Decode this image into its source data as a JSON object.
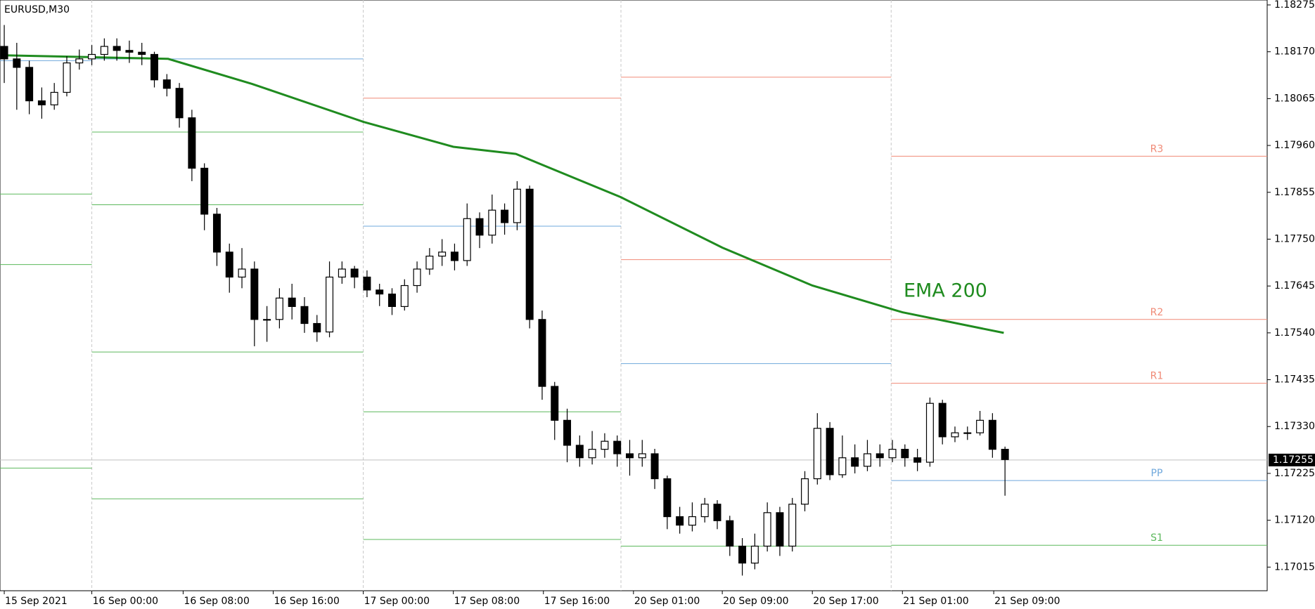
{
  "chart_data": {
    "type": "candlestick",
    "title": "EURUSD,M30",
    "ylim": [
      1.16962,
      1.18286
    ],
    "xlim": [
      -0.34,
      100.96
    ],
    "yticks": [
      1.18275,
      {
        "value": 1.1817,
        "label": "1.18170"
      },
      1.18065,
      {
        "value": 1.1796,
        "label": "1.17960"
      },
      1.17855,
      {
        "value": 1.1775,
        "label": "1.17750"
      },
      1.17645,
      {
        "value": 1.1754,
        "label": "1.17540"
      },
      1.17435,
      {
        "value": 1.1733,
        "label": "1.17330"
      },
      1.17225,
      {
        "value": 1.1712,
        "label": "1.17120"
      },
      1.17015
    ],
    "xticks": [
      {
        "value": 0,
        "label": "15 Sep 2021"
      },
      {
        "value": 7,
        "label": "16 Sep 00:00"
      },
      {
        "value": 14.3,
        "label": "16 Sep 08:00"
      },
      {
        "value": 21.5,
        "label": "16 Sep 16:00"
      },
      {
        "value": 28.7,
        "label": "17 Sep 00:00"
      },
      {
        "value": 35.9,
        "label": "17 Sep 08:00"
      },
      {
        "value": 43.1,
        "label": "17 Sep 16:00"
      },
      {
        "value": 50.3,
        "label": "20 Sep 01:00"
      },
      {
        "value": 57.4,
        "label": "20 Sep 09:00"
      },
      {
        "value": 64.6,
        "label": "20 Sep 17:00"
      },
      {
        "value": 71.8,
        "label": "21 Sep 01:00"
      },
      {
        "value": 79.1,
        "label": "21 Sep 09:00"
      }
    ],
    "day_separators": [
      7,
      28.7,
      49.3,
      70.9
    ],
    "up_color": "#ffffff",
    "down_color": "#000000",
    "open": [
      1.18182,
      1.18154,
      1.18135,
      1.1806,
      1.18051,
      1.18079,
      1.18145,
      1.18154,
      1.18164,
      1.18182,
      1.18173,
      1.18169,
      1.18164,
      1.18107,
      1.18088,
      1.18022,
      1.17909,
      1.17806,
      1.17721,
      1.17665,
      1.17683,
      1.1757,
      1.1757,
      1.17618,
      1.17599,
      1.17561,
      1.17542,
      1.17665,
      1.17683,
      1.17665,
      1.17636,
      1.17627,
      1.17599,
      1.17646,
      1.17683,
      1.17712,
      1.17721,
      1.17702,
      1.17796,
      1.17759,
      1.17815,
      1.17787,
      1.17862,
      1.1757,
      1.1742,
      1.17344,
      1.17288,
      1.1726,
      1.17279,
      1.17297,
      1.17269,
      1.1726,
      1.17269,
      1.17213,
      1.17128,
      1.17109,
      1.17128,
      1.17156,
      1.17119,
      1.17062,
      1.17024,
      1.17062,
      1.17137,
      1.17062,
      1.17156,
      1.17213,
      1.17326,
      1.17222,
      1.1726,
      1.17241,
      1.17269,
      1.1726,
      1.17279,
      1.1726,
      1.1725,
      1.17382,
      1.17307,
      1.17316,
      1.17316,
      1.17344,
      1.17279
    ],
    "high": [
      1.1823,
      1.1819,
      1.1815,
      1.1809,
      1.181,
      1.1816,
      1.18175,
      1.18185,
      1.182,
      1.182,
      1.18195,
      1.1819,
      1.1817,
      1.1812,
      1.181,
      1.1804,
      1.1792,
      1.1782,
      1.1774,
      1.1773,
      1.177,
      1.176,
      1.1764,
      1.1765,
      1.1762,
      1.1758,
      1.177,
      1.177,
      1.1769,
      1.1768,
      1.1765,
      1.1764,
      1.1766,
      1.177,
      1.1773,
      1.1775,
      1.1774,
      1.1783,
      1.1781,
      1.1785,
      1.1783,
      1.1788,
      1.1787,
      1.1759,
      1.1743,
      1.1737,
      1.1731,
      1.1732,
      1.17315,
      1.1731,
      1.173,
      1.173,
      1.1728,
      1.1722,
      1.1715,
      1.1716,
      1.1717,
      1.17165,
      1.1713,
      1.1708,
      1.1709,
      1.1716,
      1.1715,
      1.1717,
      1.1723,
      1.1736,
      1.1734,
      1.1731,
      1.1729,
      1.173,
      1.1729,
      1.173,
      1.1729,
      1.1728,
      1.17395,
      1.1739,
      1.1733,
      1.1733,
      1.17365,
      1.1736,
      1.17285
    ],
    "low": [
      1.181,
      1.1804,
      1.1803,
      1.1802,
      1.1804,
      1.1807,
      1.1813,
      1.1814,
      1.1815,
      1.1815,
      1.18145,
      1.1814,
      1.1809,
      1.1807,
      1.18,
      1.1788,
      1.1777,
      1.1769,
      1.1763,
      1.1764,
      1.1751,
      1.1752,
      1.1755,
      1.1757,
      1.1754,
      1.1752,
      1.1753,
      1.1765,
      1.1764,
      1.1762,
      1.176,
      1.1758,
      1.1759,
      1.1763,
      1.1767,
      1.1769,
      1.1768,
      1.1769,
      1.1773,
      1.1774,
      1.1776,
      1.1777,
      1.1755,
      1.1739,
      1.173,
      1.1725,
      1.1724,
      1.17245,
      1.1726,
      1.1724,
      1.1722,
      1.1724,
      1.1719,
      1.171,
      1.1709,
      1.17095,
      1.17115,
      1.171,
      1.1704,
      1.16996,
      1.1701,
      1.1705,
      1.1704,
      1.1705,
      1.1714,
      1.172,
      1.1721,
      1.17215,
      1.17225,
      1.1723,
      1.1724,
      1.1725,
      1.1724,
      1.1723,
      1.1724,
      1.1729,
      1.17295,
      1.173,
      1.1731,
      1.1726,
      1.17175
    ],
    "close": [
      1.18154,
      1.18135,
      1.1806,
      1.18051,
      1.18079,
      1.18145,
      1.18154,
      1.18164,
      1.18182,
      1.18173,
      1.18169,
      1.18164,
      1.18107,
      1.18088,
      1.18022,
      1.17909,
      1.17806,
      1.17721,
      1.17665,
      1.17683,
      1.1757,
      1.1757,
      1.17618,
      1.17599,
      1.17561,
      1.17542,
      1.17665,
      1.17683,
      1.17665,
      1.17636,
      1.17627,
      1.17599,
      1.17646,
      1.17683,
      1.17712,
      1.17721,
      1.17702,
      1.17796,
      1.17759,
      1.17815,
      1.17787,
      1.17862,
      1.1757,
      1.1742,
      1.17344,
      1.17288,
      1.1726,
      1.17279,
      1.17297,
      1.17269,
      1.1726,
      1.17269,
      1.17213,
      1.17128,
      1.17109,
      1.17128,
      1.17156,
      1.17119,
      1.17062,
      1.17024,
      1.17062,
      1.17137,
      1.17062,
      1.17156,
      1.17213,
      1.17326,
      1.17222,
      1.1726,
      1.17241,
      1.17269,
      1.1726,
      1.17279,
      1.1726,
      1.1725,
      1.17382,
      1.17307,
      1.17316,
      1.17316,
      1.17344,
      1.17279,
      1.17256
    ],
    "ema": {
      "label": "EMA 200",
      "color": "#1f8b1f",
      "x": [
        0,
        6.7,
        13.1,
        19.8,
        28.7,
        35.9,
        40.9,
        49.3,
        57.4,
        64.6,
        71.8,
        79.9
      ],
      "values": [
        1.18162,
        1.18158,
        1.18154,
        1.18098,
        1.18013,
        1.17957,
        1.17941,
        1.17844,
        1.17731,
        1.17646,
        1.17586,
        1.1754
      ]
    },
    "pivot_days": [
      {
        "start": -0.34,
        "end": 7,
        "levels": [
          {
            "value": 1.1815,
            "color": "#6fa8dc"
          },
          {
            "value": 1.17851,
            "color": "#5cb85c"
          },
          {
            "value": 1.17693,
            "color": "#5cb85c"
          },
          {
            "value": 1.17237,
            "color": "#5cb85c"
          }
        ]
      },
      {
        "start": 7,
        "end": 28.7,
        "levels": [
          {
            "value": 1.18154,
            "color": "#6fa8dc"
          },
          {
            "value": 1.1799,
            "color": "#5cb85c"
          },
          {
            "value": 1.17827,
            "color": "#5cb85c"
          },
          {
            "value": 1.17497,
            "color": "#5cb85c"
          },
          {
            "value": 1.17168,
            "color": "#5cb85c"
          }
        ]
      },
      {
        "start": 28.7,
        "end": 49.3,
        "levels": [
          {
            "value": 1.18066,
            "color": "#f08a76"
          },
          {
            "value": 1.17779,
            "color": "#6fa8dc"
          },
          {
            "value": 1.17363,
            "color": "#5cb85c"
          },
          {
            "value": 1.17077,
            "color": "#5cb85c"
          }
        ]
      },
      {
        "start": 49.3,
        "end": 70.9,
        "levels": [
          {
            "value": 1.18113,
            "color": "#f08a76"
          },
          {
            "value": 1.17704,
            "color": "#f08a76"
          },
          {
            "value": 1.17471,
            "color": "#6fa8dc"
          },
          {
            "value": 1.17062,
            "color": "#5cb85c"
          }
        ]
      },
      {
        "start": 70.9,
        "end": 100.96,
        "levels": [
          {
            "value": 1.17936,
            "color": "#f08a76",
            "label": "R3"
          },
          {
            "value": 1.1757,
            "color": "#f08a76",
            "label": "R2"
          },
          {
            "value": 1.17427,
            "color": "#f08a76",
            "label": "R1"
          },
          {
            "value": 1.17209,
            "color": "#6fa8dc",
            "label": "PP"
          },
          {
            "value": 1.17064,
            "color": "#5cb85c",
            "label": "S1"
          }
        ]
      }
    ],
    "price_line": 1.17255
  }
}
